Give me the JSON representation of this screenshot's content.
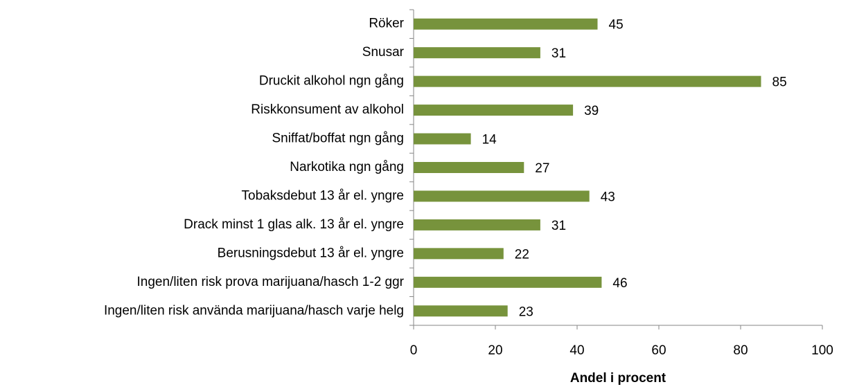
{
  "chart_data": {
    "type": "bar",
    "orientation": "horizontal",
    "x_label": "Andel i procent",
    "categories": [
      "Röker",
      "Snusar",
      "Druckit alkohol ngn gång",
      "Riskkonsument av alkohol",
      "Sniffat/boffat ngn gång",
      "Narkotika ngn gång",
      "Tobaksdebut 13 år el. yngre",
      "Drack minst 1 glas alk. 13 år el. yngre",
      "Berusningsdebut 13 år el. yngre",
      "Ingen/liten risk prova marijuana/hasch 1-2 ggr",
      "Ingen/liten risk använda marijuana/hasch varje helg"
    ],
    "values": [
      45,
      31,
      85,
      39,
      14,
      27,
      43,
      31,
      22,
      46,
      23
    ],
    "color": "#77933c",
    "xlim": [
      0,
      100
    ],
    "xticks": [
      0,
      20,
      40,
      60,
      80,
      100
    ],
    "grid": false
  }
}
